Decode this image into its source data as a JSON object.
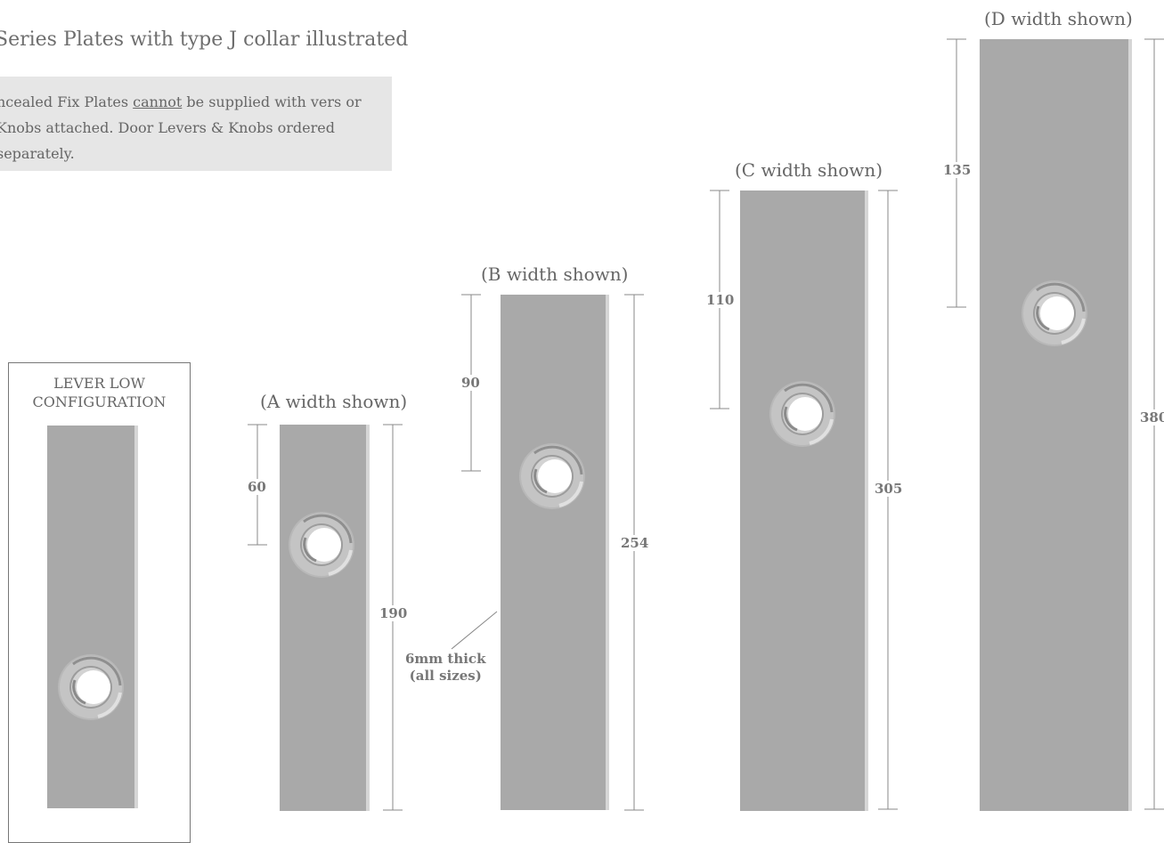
{
  "title": "Series Plates with type J collar illustrated",
  "note": {
    "before": "ncealed Fix Plates ",
    "underlined": "cannot",
    "after": " be supplied with vers or Knobs attached. Door Levers & Knobs ordered separately."
  },
  "lever_low": {
    "label_line1": "LEVER LOW",
    "label_line2": "CONFIGURATION"
  },
  "plates": [
    {
      "caption": "(A width shown)",
      "offset_label": "60",
      "height_label": "190"
    },
    {
      "caption": "(B width shown)",
      "offset_label": "90",
      "height_label": "254"
    },
    {
      "caption": "(C width shown)",
      "offset_label": "110",
      "height_label": "305"
    },
    {
      "caption": "(D width shown)",
      "offset_label": "135",
      "height_label": "380"
    }
  ],
  "thickness_note": {
    "line1": "6mm thick",
    "line2": "(all sizes)"
  },
  "colors": {
    "plate": "#a9a9a9",
    "plate_edge": "#d6d6d6",
    "note_background": "#e6e6e6",
    "dimension_line": "#888888",
    "collar": "#bdbdbd"
  }
}
